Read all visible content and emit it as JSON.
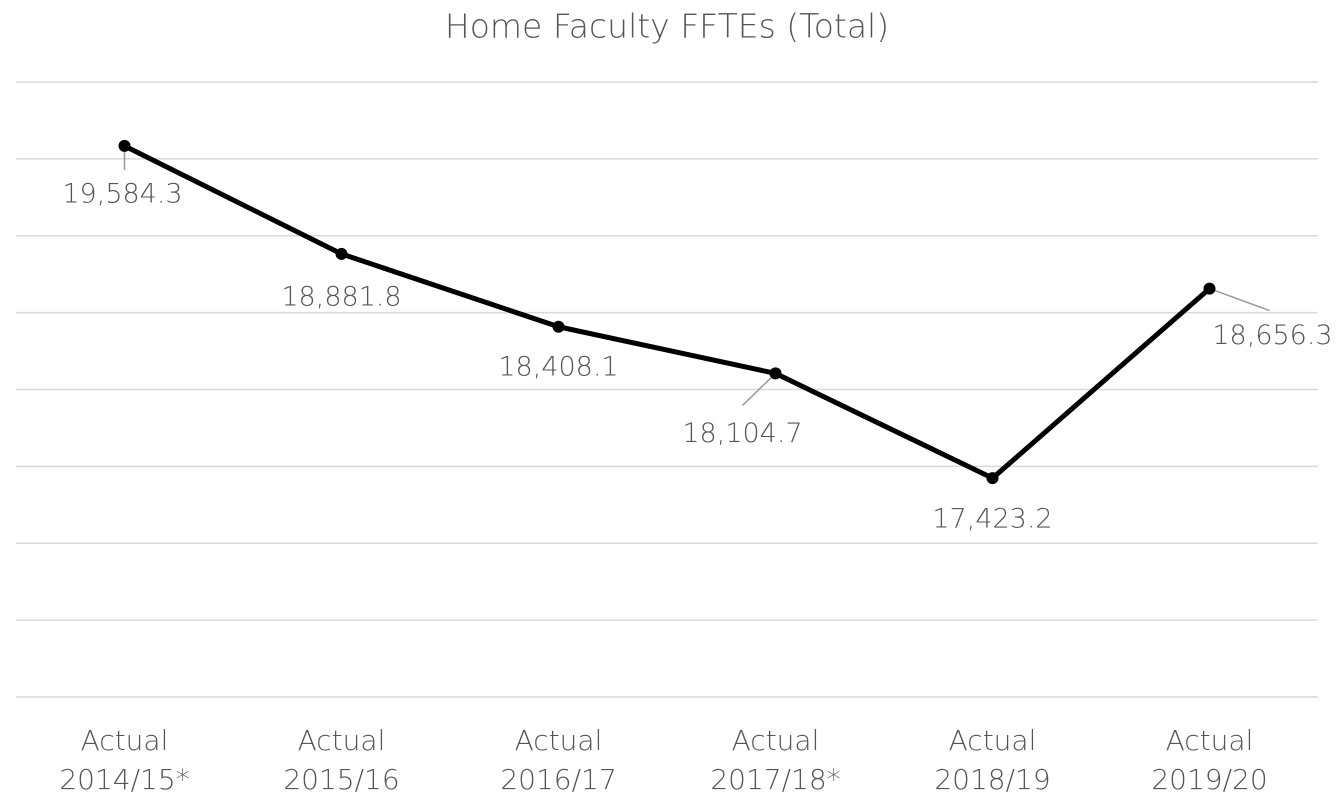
{
  "chart_data": {
    "type": "line",
    "title": "Home Faculty FFTEs (Total)",
    "categories": [
      [
        "Actual",
        "2014/15*"
      ],
      [
        "Actual",
        "2015/16"
      ],
      [
        "Actual",
        "2016/17"
      ],
      [
        "Actual",
        "2017/18*"
      ],
      [
        "Actual",
        "2018/19"
      ],
      [
        "Actual",
        "2019/20"
      ]
    ],
    "values": [
      19584.3,
      18881.8,
      18408.1,
      18104.7,
      17423.2,
      18656.3
    ],
    "value_labels": [
      "19,584.3",
      "18,881.8",
      "18,408.1",
      "18,104.7",
      "17,423.2",
      "18,656.3"
    ],
    "color": "#000000",
    "ylim": [
      16000,
      20000
    ],
    "yticks": [
      16000,
      16500,
      17000,
      17500,
      18000,
      18500,
      19000,
      19500,
      20000
    ],
    "grid": true
  }
}
